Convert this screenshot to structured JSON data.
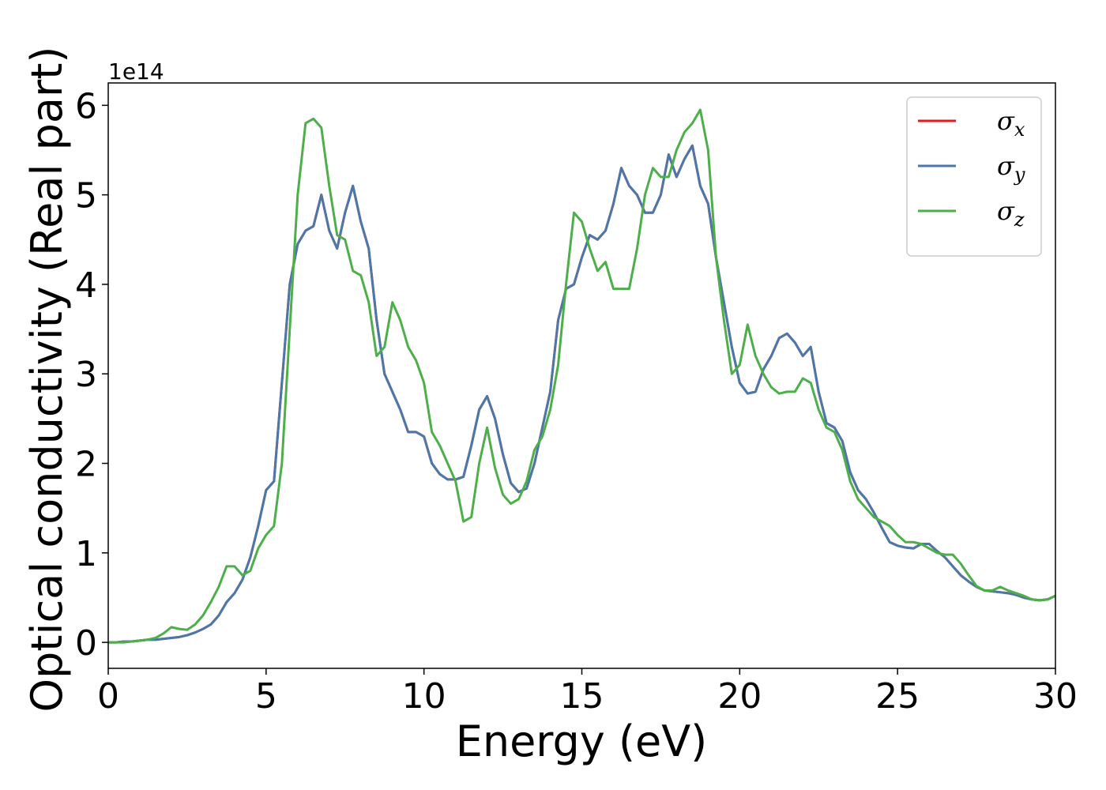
{
  "chart_data": {
    "type": "line",
    "offset_label": "1e14",
    "xlabel": "Energy (eV)",
    "ylabel": "Optical conductivity (Real part)",
    "xlim": [
      0,
      30
    ],
    "ylim": [
      -0.29,
      6.25
    ],
    "xticks": [
      0,
      5,
      10,
      15,
      20,
      25,
      30
    ],
    "yticks": [
      0,
      1,
      2,
      3,
      4,
      5,
      6
    ],
    "legend": "upper right",
    "x": [
      0,
      0.25,
      0.5,
      0.75,
      1,
      1.25,
      1.5,
      1.75,
      2,
      2.25,
      2.5,
      2.75,
      3,
      3.25,
      3.5,
      3.75,
      4,
      4.25,
      4.5,
      4.75,
      5,
      5.25,
      5.5,
      5.75,
      6,
      6.25,
      6.5,
      6.75,
      7,
      7.25,
      7.5,
      7.75,
      8,
      8.25,
      8.5,
      8.75,
      9,
      9.25,
      9.5,
      9.75,
      10,
      10.25,
      10.5,
      10.75,
      11,
      11.25,
      11.5,
      11.75,
      12,
      12.25,
      12.5,
      12.75,
      13,
      13.25,
      13.5,
      13.75,
      14,
      14.25,
      14.5,
      14.75,
      15,
      15.25,
      15.5,
      15.75,
      16,
      16.25,
      16.5,
      16.75,
      17,
      17.25,
      17.5,
      17.75,
      18,
      18.25,
      18.5,
      18.75,
      19,
      19.25,
      19.5,
      19.75,
      20,
      20.25,
      20.5,
      20.75,
      21,
      21.25,
      21.5,
      21.75,
      22,
      22.25,
      22.5,
      22.75,
      23,
      23.25,
      23.5,
      23.75,
      24,
      24.25,
      24.5,
      24.75,
      25,
      25.25,
      25.5,
      25.75,
      26,
      26.25,
      26.5,
      26.75,
      27,
      27.25,
      27.5,
      27.75,
      28,
      28.25,
      28.5,
      28.75,
      29,
      29.25,
      29.5,
      29.75,
      30
    ],
    "series": [
      {
        "name": "σx",
        "color": "#e41a1c",
        "values": [
          0,
          0,
          0.01,
          0.01,
          0.02,
          0.03,
          0.03,
          0.04,
          0.05,
          0.06,
          0.08,
          0.11,
          0.15,
          0.2,
          0.3,
          0.45,
          0.55,
          0.7,
          0.95,
          1.3,
          1.7,
          1.8,
          2.9,
          4.0,
          4.45,
          4.6,
          4.65,
          5.0,
          4.6,
          4.4,
          4.8,
          5.1,
          4.7,
          4.4,
          3.6,
          3.0,
          2.8,
          2.6,
          2.35,
          2.35,
          2.3,
          2.0,
          1.88,
          1.82,
          1.82,
          1.85,
          2.2,
          2.6,
          2.75,
          2.5,
          2.1,
          1.78,
          1.68,
          1.72,
          2.0,
          2.4,
          2.8,
          3.6,
          3.95,
          4.0,
          4.3,
          4.55,
          4.5,
          4.6,
          4.9,
          5.3,
          5.1,
          5.0,
          4.8,
          4.8,
          5.0,
          5.45,
          5.2,
          5.4,
          5.55,
          5.1,
          4.9,
          4.3,
          3.8,
          3.3,
          2.9,
          2.78,
          2.8,
          3.05,
          3.2,
          3.4,
          3.45,
          3.35,
          3.2,
          3.3,
          2.8,
          2.45,
          2.4,
          2.25,
          1.9,
          1.7,
          1.6,
          1.45,
          1.28,
          1.12,
          1.08,
          1.06,
          1.05,
          1.1,
          1.1,
          1.02,
          0.95,
          0.85,
          0.75,
          0.68,
          0.62,
          0.58,
          0.57,
          0.56,
          0.55,
          0.53,
          0.5,
          0.48,
          0.47,
          0.48,
          0.52
        ]
      },
      {
        "name": "σy",
        "color": "#4a78aa",
        "values": [
          0,
          0,
          0.01,
          0.01,
          0.02,
          0.03,
          0.03,
          0.04,
          0.05,
          0.06,
          0.08,
          0.11,
          0.15,
          0.2,
          0.3,
          0.45,
          0.55,
          0.7,
          0.95,
          1.3,
          1.7,
          1.8,
          2.9,
          4.0,
          4.45,
          4.6,
          4.65,
          5.0,
          4.6,
          4.4,
          4.8,
          5.1,
          4.7,
          4.4,
          3.6,
          3.0,
          2.8,
          2.6,
          2.35,
          2.35,
          2.3,
          2.0,
          1.88,
          1.82,
          1.82,
          1.85,
          2.2,
          2.6,
          2.75,
          2.5,
          2.1,
          1.78,
          1.68,
          1.72,
          2.0,
          2.4,
          2.8,
          3.6,
          3.95,
          4.0,
          4.3,
          4.55,
          4.5,
          4.6,
          4.9,
          5.3,
          5.1,
          5.0,
          4.8,
          4.8,
          5.0,
          5.45,
          5.2,
          5.4,
          5.55,
          5.1,
          4.9,
          4.3,
          3.8,
          3.3,
          2.9,
          2.78,
          2.8,
          3.05,
          3.2,
          3.4,
          3.45,
          3.35,
          3.2,
          3.3,
          2.8,
          2.45,
          2.4,
          2.25,
          1.9,
          1.7,
          1.6,
          1.45,
          1.28,
          1.12,
          1.08,
          1.06,
          1.05,
          1.1,
          1.1,
          1.02,
          0.95,
          0.85,
          0.75,
          0.68,
          0.62,
          0.58,
          0.57,
          0.56,
          0.55,
          0.53,
          0.5,
          0.48,
          0.47,
          0.48,
          0.52
        ]
      },
      {
        "name": "σz",
        "color": "#4daf4a",
        "values": [
          0,
          0,
          0,
          0.01,
          0.02,
          0.03,
          0.05,
          0.1,
          0.17,
          0.15,
          0.14,
          0.2,
          0.3,
          0.45,
          0.62,
          0.85,
          0.85,
          0.75,
          0.8,
          1.05,
          1.2,
          1.3,
          2.0,
          3.5,
          5.0,
          5.8,
          5.85,
          5.75,
          5.1,
          4.55,
          4.5,
          4.15,
          4.1,
          3.8,
          3.2,
          3.3,
          3.8,
          3.6,
          3.3,
          3.15,
          2.9,
          2.35,
          2.2,
          2.0,
          1.8,
          1.35,
          1.4,
          2.0,
          2.4,
          1.95,
          1.65,
          1.55,
          1.6,
          1.8,
          2.15,
          2.3,
          2.6,
          3.1,
          4.0,
          4.8,
          4.7,
          4.4,
          4.15,
          4.25,
          3.95,
          3.95,
          3.95,
          4.4,
          5.0,
          5.3,
          5.2,
          5.2,
          5.5,
          5.7,
          5.8,
          5.95,
          5.5,
          4.3,
          3.6,
          3.0,
          3.1,
          3.55,
          3.2,
          3.0,
          2.85,
          2.78,
          2.8,
          2.8,
          2.95,
          2.9,
          2.6,
          2.4,
          2.35,
          2.15,
          1.8,
          1.6,
          1.5,
          1.4,
          1.35,
          1.3,
          1.2,
          1.12,
          1.12,
          1.1,
          1.05,
          1.0,
          0.98,
          0.98,
          0.88,
          0.75,
          0.63,
          0.58,
          0.58,
          0.62,
          0.58,
          0.55,
          0.52,
          0.48,
          0.47,
          0.48,
          0.52
        ]
      }
    ]
  }
}
